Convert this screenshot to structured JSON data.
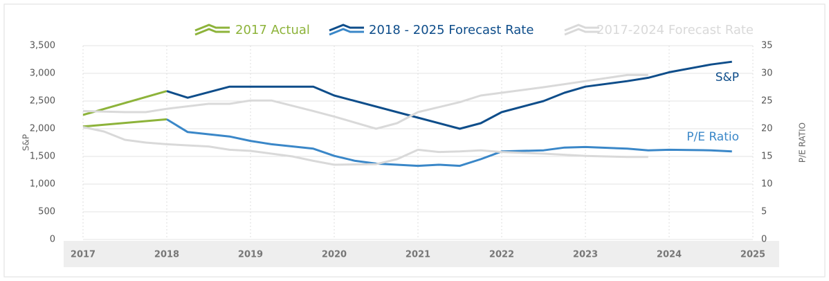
{
  "chart_data": {
    "type": "line",
    "y_label": "S&P",
    "y2_label": "P/E RATIO",
    "annotations": [
      {
        "text": "S&P",
        "color": "#0e4d8a"
      },
      {
        "text": "P/E Ratio",
        "color": "#3a87c8"
      }
    ],
    "xlim": [
      2017,
      2025
    ],
    "xticks": [
      2017,
      2018,
      2019,
      2020,
      2021,
      2022,
      2023,
      2024,
      2025
    ],
    "ylim": [
      0,
      3500
    ],
    "yticks": [
      0,
      500,
      {
        "value": 1000,
        "label": "1,000"
      },
      {
        "value": 1500,
        "label": "1,500"
      },
      {
        "value": 2000,
        "label": "2,000"
      },
      {
        "value": 2500,
        "label": "2,500"
      },
      {
        "value": 3000,
        "label": "3,000"
      },
      {
        "value": 3500,
        "label": "3,500"
      }
    ],
    "y2lim": [
      0,
      35
    ],
    "y2ticks": [
      0,
      5,
      10,
      15,
      20,
      25,
      30,
      35
    ],
    "grid": true,
    "series": [
      {
        "name": "2017 Actual",
        "colors": [
          "#8db33a",
          "#8db33a"
        ],
        "sp": {
          "x": [
            2017,
            2018
          ],
          "values": [
            2250,
            2680
          ]
        },
        "pe": {
          "axis": "y2",
          "x": [
            2017,
            2018
          ],
          "values": [
            20.4,
            21.7
          ]
        }
      },
      {
        "name": "2018 - 2025 Forecast Rate",
        "colors": [
          "#0e4d8a",
          "#3a87c8"
        ],
        "sp": {
          "x": [
            2018,
            2018.25,
            2018.75,
            2019,
            2019.5,
            2019.75,
            2020,
            2021,
            2021.5,
            2021.75,
            2022,
            2022.5,
            2022.75,
            2023,
            2023.5,
            2023.75,
            2024,
            2024.5,
            2024.75
          ],
          "values": [
            2680,
            2560,
            2760,
            2760,
            2760,
            2760,
            2600,
            2200,
            2000,
            2100,
            2300,
            2500,
            2650,
            2760,
            2860,
            2920,
            3020,
            3160,
            3210
          ]
        },
        "pe": {
          "axis": "y2",
          "x": [
            2018,
            2018.25,
            2018.75,
            2019,
            2019.25,
            2019.75,
            2020,
            2020.25,
            2020.5,
            2021,
            2021.25,
            2021.5,
            2021.75,
            2022,
            2022.5,
            2022.75,
            2023,
            2023.5,
            2023.75,
            2024,
            2024.5,
            2024.75
          ],
          "values": [
            21.7,
            19.4,
            18.6,
            17.8,
            17.2,
            16.4,
            15.1,
            14.2,
            13.7,
            13.3,
            13.5,
            13.3,
            14.5,
            15.9,
            16.1,
            16.6,
            16.7,
            16.4,
            16.1,
            16.2,
            16.1,
            15.9
          ]
        }
      },
      {
        "name": "2017-2024 Forecast Rate",
        "colors": [
          "#d9d9d9",
          "#d9d9d9"
        ],
        "sp": {
          "x": [
            2017,
            2017.5,
            2017.75,
            2018,
            2018.5,
            2018.75,
            2019,
            2019.25,
            2019.75,
            2020,
            2020.5,
            2020.75,
            2021,
            2021.5,
            2021.75,
            2022,
            2022.5,
            2023,
            2023.5,
            2023.75
          ],
          "values": [
            2320,
            2300,
            2300,
            2360,
            2450,
            2450,
            2510,
            2510,
            2320,
            2220,
            2000,
            2100,
            2300,
            2480,
            2600,
            2650,
            2750,
            2860,
            2970,
            2970
          ]
        },
        "pe": {
          "axis": "y2",
          "x": [
            2017,
            2017.25,
            2017.5,
            2017.75,
            2018,
            2018.5,
            2018.75,
            2019,
            2019.5,
            2019.75,
            2020,
            2020.5,
            2020.75,
            2021,
            2021.25,
            2021.5,
            2021.75,
            2022,
            2022.5,
            2023,
            2023.5,
            2023.75
          ],
          "values": [
            20.3,
            19.5,
            18.0,
            17.5,
            17.2,
            16.8,
            16.2,
            16.0,
            15.0,
            14.2,
            13.5,
            13.6,
            14.5,
            16.2,
            15.8,
            15.9,
            16.1,
            15.8,
            15.5,
            15.1,
            14.9,
            14.9
          ]
        }
      }
    ]
  }
}
